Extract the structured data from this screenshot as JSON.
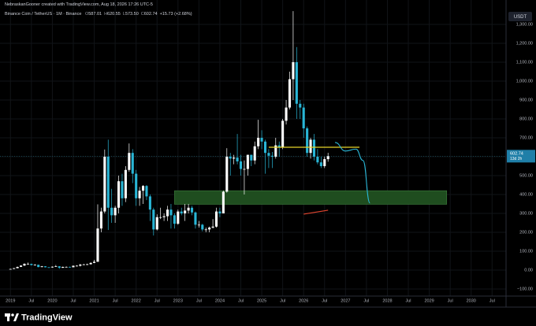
{
  "chart_data": {
    "type": "candlestick",
    "attribution": "NebraskanGooner created with TradingView.com, Aug 18, 2026 17:26 UTC-5",
    "title": "Binance Coin / TetherUS · 1M · Binance",
    "ohlc_legend": [
      {
        "label": "O",
        "value": "587.01"
      },
      {
        "label": "H",
        "value": "620.55"
      },
      {
        "label": "L",
        "value": "573.50"
      },
      {
        "label": "C",
        "value": "602.74"
      }
    ],
    "change": "+15.73 (+2.68%)",
    "currency": "USDT",
    "countdown": "13d 2h",
    "brand": "TradingView",
    "up_color": "#ffffff",
    "down_color": "#29b6d6",
    "grid": true,
    "x": [
      "2019-01",
      "2019-02",
      "2019-03",
      "2019-04",
      "2019-05",
      "2019-06",
      "2019-07",
      "2019-08",
      "2019-09",
      "2019-10",
      "2019-11",
      "2019-12",
      "2020-01",
      "2020-02",
      "2020-03",
      "2020-04",
      "2020-05",
      "2020-06",
      "2020-07",
      "2020-08",
      "2020-09",
      "2020-10",
      "2020-11",
      "2020-12",
      "2021-01",
      "2021-02",
      "2021-03",
      "2021-04",
      "2021-05",
      "2021-06",
      "2021-07",
      "2021-08",
      "2021-09",
      "2021-10",
      "2021-11",
      "2021-12",
      "2022-01",
      "2022-02",
      "2022-03",
      "2022-04",
      "2022-05",
      "2022-06",
      "2022-07",
      "2022-08",
      "2022-09",
      "2022-10",
      "2022-11",
      "2022-12",
      "2023-01",
      "2023-02",
      "2023-03",
      "2023-04",
      "2023-05",
      "2023-06",
      "2023-07",
      "2023-08",
      "2023-09",
      "2023-10",
      "2023-11",
      "2023-12",
      "2024-01",
      "2024-02",
      "2024-03",
      "2024-04",
      "2024-05",
      "2024-06",
      "2024-07",
      "2024-08",
      "2024-09",
      "2024-10",
      "2024-11",
      "2024-12",
      "2025-01",
      "2025-02",
      "2025-03",
      "2025-04",
      "2025-05",
      "2025-06",
      "2025-07",
      "2025-08",
      "2025-09",
      "2025-10",
      "2025-11",
      "2025-12",
      "2026-01",
      "2026-02",
      "2026-03",
      "2026-04",
      "2026-05",
      "2026-06",
      "2026-07",
      "2026-08"
    ],
    "open": [
      6,
      6,
      10,
      17,
      24,
      33,
      33,
      27,
      28,
      16,
      20,
      15,
      14,
      18,
      20,
      12,
      17,
      17,
      15,
      23,
      23,
      29,
      30,
      31,
      38,
      44,
      220,
      310,
      600,
      330,
      290,
      330,
      470,
      380,
      530,
      620,
      510,
      380,
      420,
      445,
      390,
      320,
      215,
      280,
      280,
      285,
      320,
      290,
      245,
      310,
      300,
      315,
      330,
      305,
      240,
      240,
      215,
      215,
      225,
      230,
      310,
      300,
      415,
      600,
      590,
      595,
      575,
      535,
      535,
      610,
      580,
      655,
      700,
      680,
      620,
      605,
      600,
      660,
      650,
      790,
      860,
      1010,
      1100,
      880,
      860,
      750,
      620,
      690,
      600,
      570,
      550,
      587.01
    ],
    "high": [
      7,
      11,
      18,
      25,
      36,
      40,
      34,
      31,
      29,
      22,
      21,
      15,
      19,
      27,
      21,
      18,
      19,
      18,
      24,
      26,
      33,
      33,
      34,
      41,
      54,
      348,
      330,
      638,
      690,
      430,
      340,
      500,
      510,
      550,
      670,
      640,
      530,
      440,
      450,
      450,
      400,
      330,
      295,
      330,
      300,
      340,
      350,
      300,
      320,
      330,
      350,
      350,
      340,
      310,
      260,
      245,
      225,
      230,
      270,
      330,
      330,
      420,
      645,
      620,
      610,
      720,
      610,
      580,
      610,
      610,
      680,
      795,
      740,
      690,
      640,
      625,
      700,
      680,
      800,
      900,
      1050,
      1370,
      1180,
      900,
      880,
      760,
      700,
      720,
      640,
      600,
      600,
      620.55
    ],
    "low": [
      5,
      6,
      10,
      16,
      22,
      29,
      24,
      24,
      15,
      15,
      14,
      12,
      13,
      18,
      7,
      12,
      15,
      14,
      15,
      20,
      19,
      27,
      26,
      29,
      37,
      44,
      200,
      300,
      212,
      250,
      250,
      300,
      340,
      360,
      520,
      460,
      340,
      340,
      350,
      370,
      260,
      183,
      210,
      270,
      260,
      260,
      220,
      220,
      240,
      290,
      260,
      300,
      290,
      220,
      225,
      205,
      200,
      200,
      220,
      225,
      280,
      300,
      410,
      500,
      560,
      560,
      500,
      400,
      500,
      550,
      560,
      640,
      640,
      510,
      540,
      540,
      590,
      600,
      640,
      770,
      850,
      900,
      800,
      800,
      700,
      600,
      590,
      580,
      560,
      540,
      540,
      573.5
    ],
    "close": [
      6,
      10,
      17,
      24,
      33,
      33,
      27,
      28,
      16,
      20,
      15,
      14,
      18,
      20,
      12,
      17,
      17,
      15,
      23,
      23,
      29,
      30,
      31,
      38,
      44,
      220,
      310,
      600,
      330,
      290,
      330,
      470,
      380,
      530,
      620,
      510,
      380,
      420,
      445,
      390,
      320,
      215,
      280,
      280,
      285,
      320,
      290,
      245,
      310,
      300,
      315,
      330,
      305,
      240,
      240,
      215,
      215,
      225,
      230,
      310,
      300,
      415,
      600,
      590,
      595,
      575,
      535,
      535,
      610,
      580,
      655,
      700,
      680,
      620,
      605,
      600,
      660,
      650,
      790,
      860,
      1010,
      1100,
      880,
      860,
      750,
      620,
      690,
      600,
      570,
      550,
      587.01,
      602.74
    ],
    "xlim": [
      "2018-10",
      "2030-11"
    ],
    "xticks": [
      {
        "value": "2019-01",
        "label": "2019"
      },
      {
        "value": "2019-07",
        "label": "Jul"
      },
      {
        "value": "2020-01",
        "label": "2020"
      },
      {
        "value": "2020-07",
        "label": "Jul"
      },
      {
        "value": "2021-01",
        "label": "2021"
      },
      {
        "value": "2021-07",
        "label": "Jul"
      },
      {
        "value": "2022-01",
        "label": "2022"
      },
      {
        "value": "2022-07",
        "label": "Jul"
      },
      {
        "value": "2023-01",
        "label": "2023"
      },
      {
        "value": "2023-07",
        "label": "Jul"
      },
      {
        "value": "2024-01",
        "label": "2024"
      },
      {
        "value": "2024-07",
        "label": "Jul"
      },
      {
        "value": "2025-01",
        "label": "2025"
      },
      {
        "value": "2025-07",
        "label": "Jul"
      },
      {
        "value": "2026-01",
        "label": "2026"
      },
      {
        "value": "2026-07",
        "label": "Jul"
      },
      {
        "value": "2027-01",
        "label": "2027"
      },
      {
        "value": "2027-07",
        "label": "Jul"
      },
      {
        "value": "2028-01",
        "label": "2028"
      },
      {
        "value": "2028-07",
        "label": "Jul"
      },
      {
        "value": "2029-01",
        "label": "2029"
      },
      {
        "value": "2029-07",
        "label": "Jul"
      },
      {
        "value": "2030-01",
        "label": "2030"
      },
      {
        "value": "2030-07",
        "label": "Jul"
      }
    ],
    "ylim": [
      -137.5,
      1379
    ],
    "yticks": [
      {
        "value": -100,
        "label": "−100.00"
      },
      {
        "value": 0,
        "label": "0.00"
      },
      {
        "value": 100,
        "label": "100.00"
      },
      {
        "value": 200,
        "label": "200.00"
      },
      {
        "value": 300,
        "label": "300.00"
      },
      {
        "value": 400,
        "label": "400.00"
      },
      {
        "value": 500,
        "label": "500.00"
      },
      {
        "value": 600,
        "label": "600.00"
      },
      {
        "value": 700,
        "label": "700.00"
      },
      {
        "value": 800,
        "label": "800.00"
      },
      {
        "value": 900,
        "label": "900.00"
      },
      {
        "value": 1000,
        "label": "1,000.00"
      },
      {
        "value": 1100,
        "label": "1,100.00"
      },
      {
        "value": 1200,
        "label": "1,200.00"
      },
      {
        "value": 1300,
        "label": "1,300.00"
      }
    ],
    "drawings": [
      {
        "kind": "zone",
        "color": "#1f4d1f",
        "x0": "2022-12",
        "x1": "2029-06",
        "low": 348,
        "high": 420
      },
      {
        "kind": "hline",
        "color": "#e6d32a",
        "value": 650,
        "x0": "2025-03",
        "x1": "2027-05"
      },
      {
        "kind": "path",
        "color": "#29b6d6",
        "x": [
          "2026-10",
          "2027-01",
          "2027-04",
          "2027-06",
          "2027-08"
        ],
        "values": [
          675,
          630,
          640,
          580,
          355
        ]
      },
      {
        "kind": "path",
        "color": "#e0452f",
        "x": [
          "2026-01",
          "2026-08"
        ],
        "values": [
          296,
          317
        ]
      }
    ]
  }
}
